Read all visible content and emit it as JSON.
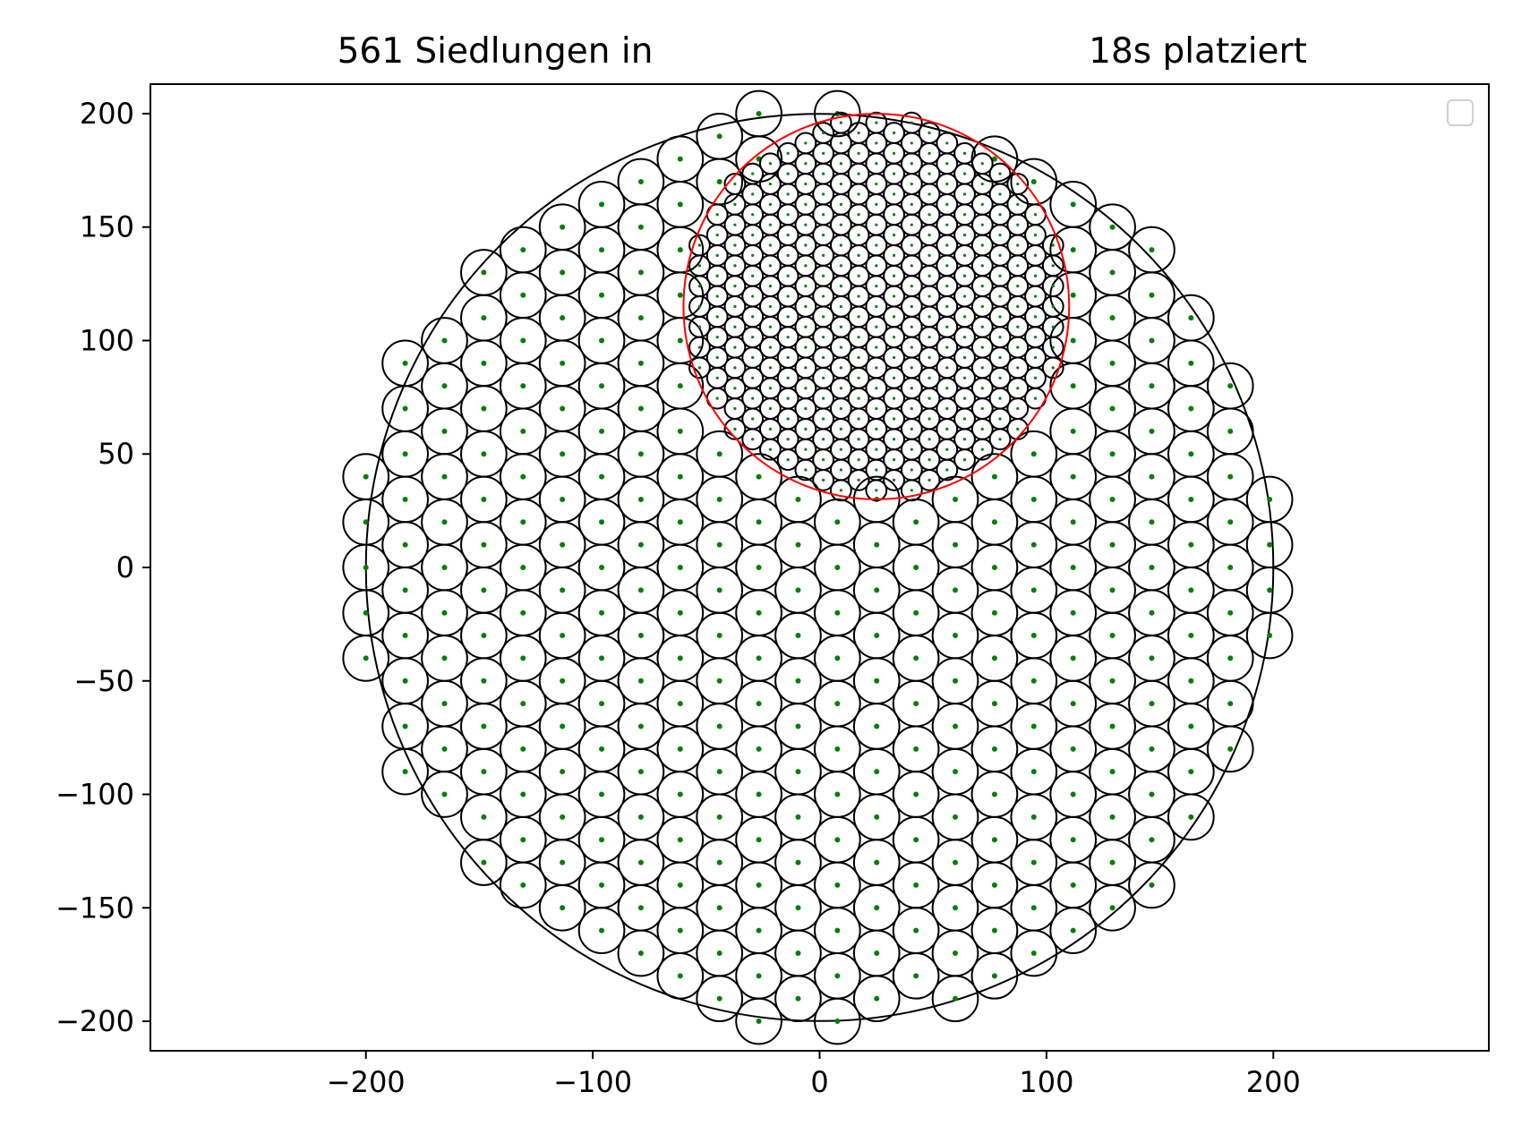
{
  "chart_data": {
    "type": "scatter",
    "title_left": "561 Siedlungen in",
    "title_right": "18s platziert",
    "xlabel": "",
    "ylabel": "",
    "xlim": [
      -295,
      295
    ],
    "ylim": [
      -213,
      213
    ],
    "x_ticks": [
      -200,
      -100,
      0,
      100,
      200
    ],
    "y_ticks": [
      -200,
      -150,
      -100,
      -50,
      0,
      50,
      100,
      150,
      200
    ],
    "x_tick_labels": [
      "−200",
      "−100",
      "0",
      "100",
      "200"
    ],
    "y_tick_labels": [
      "−200",
      "−150",
      "−100",
      "−50",
      "0",
      "50",
      "100",
      "150",
      "200"
    ],
    "grid": false,
    "legend": "top-right, empty",
    "settlement_count": 561,
    "boundary_circle": {
      "center": [
        0,
        0
      ],
      "radius": 200,
      "color": "#000000"
    },
    "dense_region_circle": {
      "center": [
        25,
        115
      ],
      "radius": 85,
      "color": "#ff0000"
    },
    "large_settlements": {
      "radius": 10,
      "lattice_dx": 17.32,
      "lattice_dy": 10,
      "x_origin": -200,
      "y_origin": 0,
      "outline_color": "#000000",
      "center_color": "#008000"
    },
    "small_settlements": {
      "radius": 4.5,
      "lattice_dx": 7.79,
      "lattice_dy": 4.5,
      "x_origin": 25,
      "y_origin": 115,
      "outline_color": "#000000",
      "center_color": "#008000"
    }
  }
}
